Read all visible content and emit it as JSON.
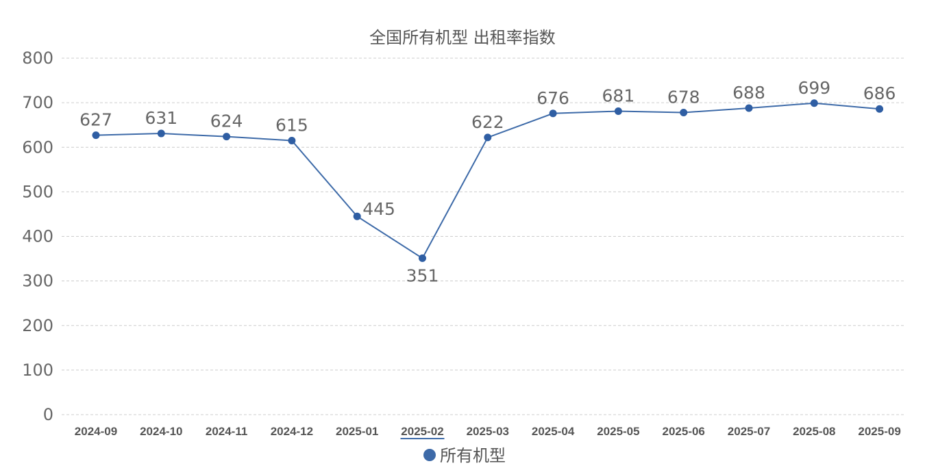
{
  "chart_data": {
    "type": "line",
    "title": "全国所有机型 出租率指数",
    "xlabel": "",
    "ylabel": "",
    "ylim": [
      0,
      800
    ],
    "yticks": [
      0,
      100,
      200,
      300,
      400,
      500,
      600,
      700,
      800
    ],
    "grid": true,
    "legend_position": "bottom",
    "categories": [
      "2024-09",
      "2024-10",
      "2024-11",
      "2024-12",
      "2025-01",
      "2025-02",
      "2025-03",
      "2025-04",
      "2025-05",
      "2025-06",
      "2025-07",
      "2025-08",
      "2025-09"
    ],
    "highlighted_category": "2025-02",
    "series": [
      {
        "name": "所有机型",
        "color": "#3d6aa8",
        "values": [
          627,
          631,
          624,
          615,
          445,
          351,
          622,
          676,
          681,
          678,
          688,
          699,
          686
        ]
      }
    ]
  }
}
